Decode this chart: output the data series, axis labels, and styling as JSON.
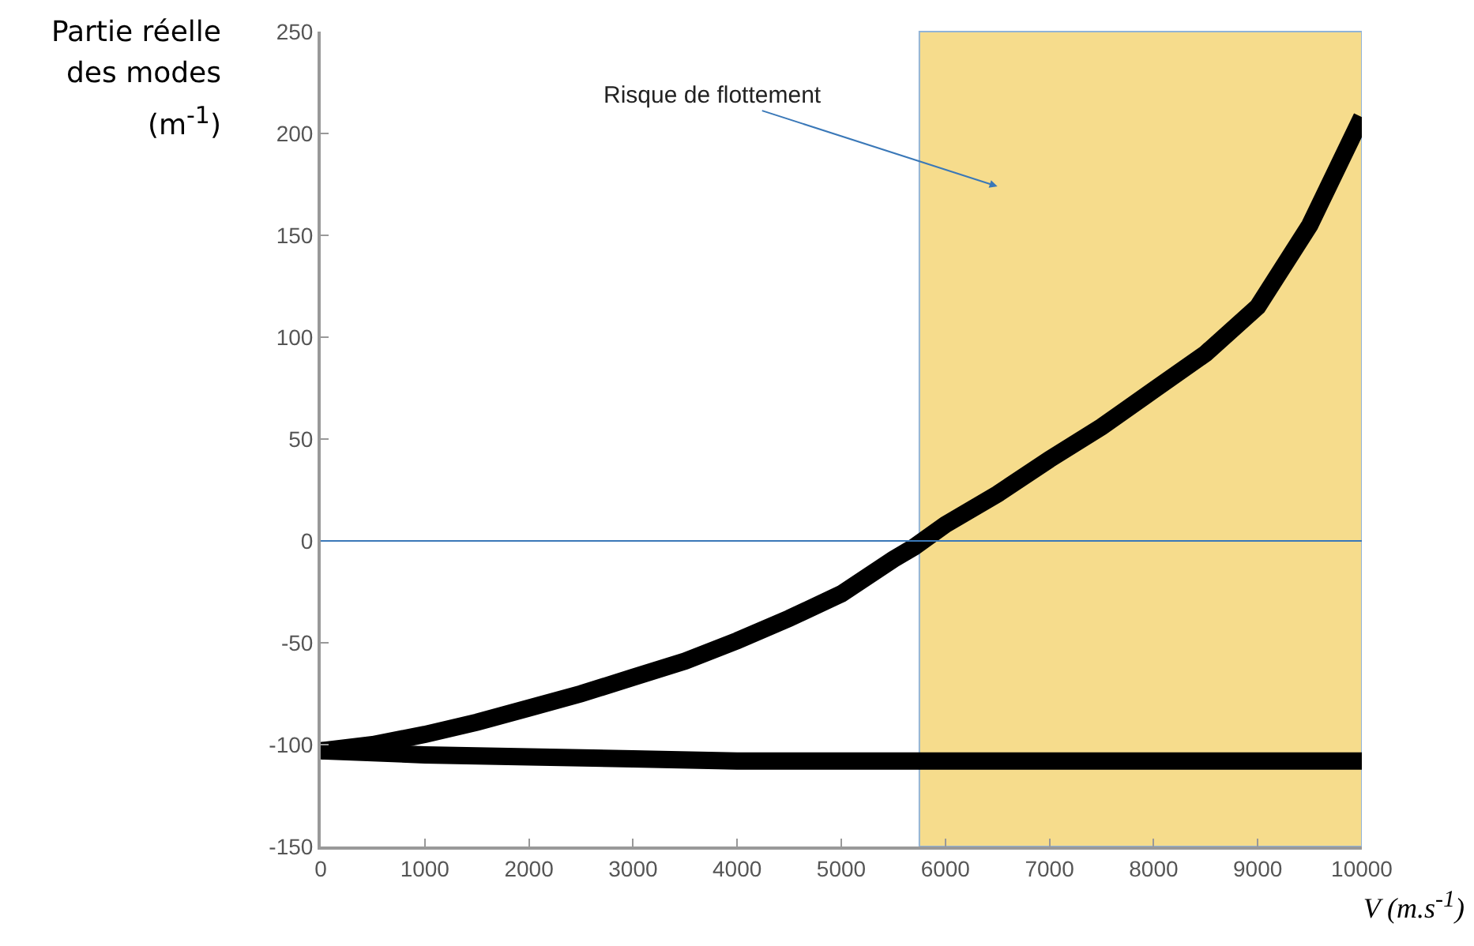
{
  "chart_data": {
    "type": "line",
    "xlabel": "V (m.s$^{-1}$)",
    "ylabel": "Partie réelle des modes (m$^{-1}$)",
    "xlim": [
      0,
      10000
    ],
    "xticks": [
      0,
      1000,
      2000,
      3000,
      4000,
      5000,
      6000,
      7000,
      8000,
      9000,
      {
        "value": 10000,
        "label": "10000"
      }
    ],
    "ylim": [
      -150,
      250
    ],
    "yticks": [
      -150,
      -100,
      -50,
      0,
      50,
      100,
      150,
      200,
      250
    ],
    "marker": "none",
    "line_style": "solid",
    "series": [
      {
        "color": "#000000",
        "x": [
          0,
          500,
          1000,
          1500,
          2000,
          2500,
          3000,
          3500,
          4000,
          4500,
          5000,
          5500,
          5700,
          6000,
          6500,
          7000,
          7500,
          8000,
          8500,
          9000,
          9500,
          10000
        ],
        "values": [
          -103,
          -100,
          -95,
          -89,
          -82,
          -75,
          -67,
          -59,
          -49,
          -38,
          -26,
          -9,
          -3,
          8,
          23,
          40,
          56,
          74,
          92,
          115,
          155,
          208
        ]
      },
      {
        "color": "#000000",
        "x": [
          0,
          500,
          1000,
          2000,
          3000,
          4000,
          5000,
          6000,
          8000,
          10000
        ],
        "values": [
          -103,
          -104,
          -105,
          -106,
          -107,
          -108,
          -108,
          -108,
          -108,
          -108
        ]
      }
    ],
    "ref_lines": [
      {
        "axis": "y",
        "value": 0,
        "color": "#3a78b8"
      }
    ],
    "bands": [
      {
        "axis": "x",
        "from": 5750,
        "to": 10000,
        "color": "#f0c030"
      }
    ],
    "annotations": [
      "Risque de flottement"
    ]
  }
}
